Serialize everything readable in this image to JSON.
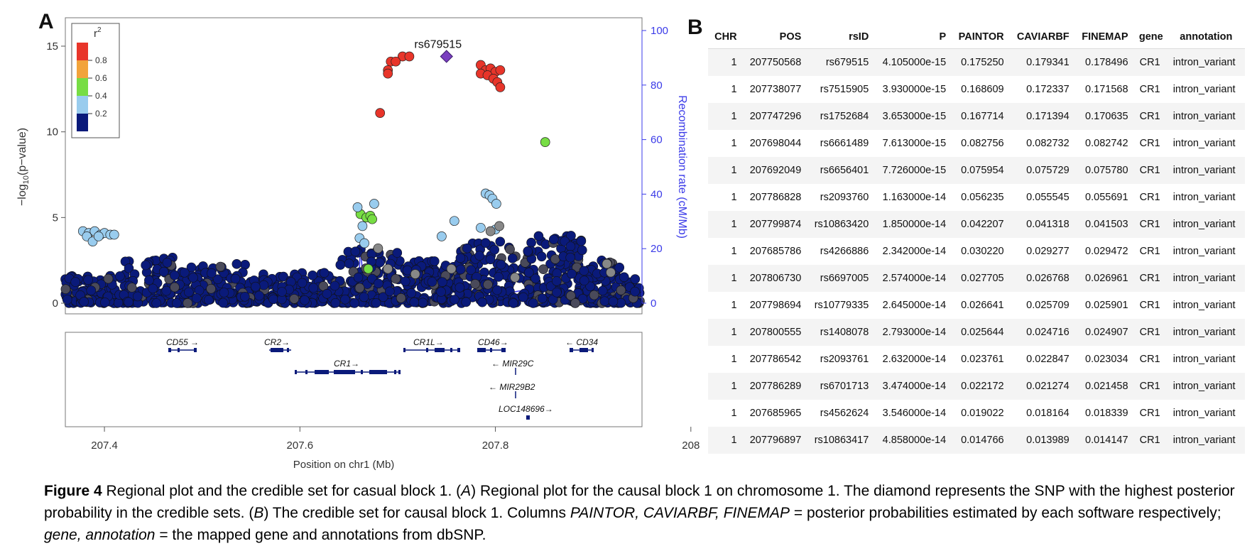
{
  "panel_a": {
    "letter": "A",
    "y_ticks": [
      "0",
      "5",
      "10",
      "15"
    ],
    "y_label_main": "−log",
    "y_label_sub": "10",
    "y_label_rest": "(p−value)",
    "y2_ticks": [
      "0",
      "20",
      "40",
      "60",
      "80",
      "100"
    ],
    "y2_label": "Recombination rate (cM/Mb)",
    "x_ticks": [
      "207.4",
      "207.6",
      "207.8",
      "208"
    ],
    "x_label": "Position on chr1 (Mb)",
    "lead_snp_label": "rs679515",
    "legend": {
      "title_base": "r",
      "title_sup": "2",
      "ticks": [
        "0.8",
        "0.6",
        "0.4",
        "0.2"
      ]
    },
    "colors": {
      "red": "#e8352a",
      "orange": "#f2a33a",
      "green": "#77dd44",
      "lightblue": "#99ccee",
      "navy": "#0a1a7a",
      "gray": "#888888",
      "diamond": "#7a3fbf",
      "recomb": "#3a3ae8"
    },
    "genes": [
      "CD55",
      "CR2",
      "CR1",
      "CR1L",
      "CD46",
      "CD34",
      "MIR29C",
      "MIR29B2",
      "LOC148696"
    ],
    "chart_data": {
      "type": "scatter",
      "xlabel": "Position on chr1 (Mb)",
      "ylabel": "−log10(p−value)",
      "y2label": "Recombination rate (cM/Mb)",
      "xlim": [
        207.36,
        207.95
      ],
      "ylim": [
        0,
        15.5
      ],
      "y2lim": [
        0,
        100
      ],
      "series": [
        {
          "color": "red",
          "points": [
            [
              207.705,
              14.4
            ],
            [
              207.712,
              14.4
            ],
            [
              207.693,
              14.1
            ],
            [
              207.698,
              14.1
            ],
            [
              207.69,
              13.6
            ],
            [
              207.69,
              13.4
            ],
            [
              207.785,
              13.9
            ],
            [
              207.79,
              13.6
            ],
            [
              207.795,
              13.7
            ],
            [
              207.8,
              13.5
            ],
            [
              207.805,
              13.6
            ],
            [
              207.785,
              13.4
            ],
            [
              207.792,
              13.3
            ],
            [
              207.798,
              13.1
            ],
            [
              207.802,
              12.9
            ],
            [
              207.805,
              12.6
            ],
            [
              207.682,
              11.1
            ]
          ]
        },
        {
          "color": "green",
          "points": [
            [
              207.851,
              9.4
            ],
            [
              207.662,
              5.2
            ],
            [
              207.668,
              5.0
            ],
            [
              207.672,
              5.1
            ],
            [
              207.674,
              4.9
            ],
            [
              207.67,
              2.0
            ]
          ]
        },
        {
          "color": "lightblue",
          "points": [
            [
              207.378,
              4.2
            ],
            [
              207.384,
              4.1
            ],
            [
              207.39,
              4.2
            ],
            [
              207.396,
              4.0
            ],
            [
              207.4,
              4.1
            ],
            [
              207.406,
              4.0
            ],
            [
              207.41,
              4.0
            ],
            [
              207.382,
              3.9
            ],
            [
              207.388,
              3.6
            ],
            [
              207.394,
              3.9
            ],
            [
              207.659,
              5.6
            ],
            [
              207.676,
              5.8
            ],
            [
              207.664,
              4.5
            ],
            [
              207.79,
              6.4
            ],
            [
              207.794,
              6.3
            ],
            [
              207.797,
              6.1
            ],
            [
              207.801,
              5.8
            ],
            [
              207.758,
              4.8
            ],
            [
              207.785,
              4.4
            ],
            [
              207.8,
              4.3
            ],
            [
              207.745,
              3.9
            ],
            [
              207.661,
              3.8
            ],
            [
              207.666,
              3.5
            ]
          ]
        },
        {
          "color": "gray",
          "points": [
            [
              207.804,
              4.5
            ],
            [
              207.795,
              4.2
            ],
            [
              207.68,
              3.2
            ],
            [
              207.69,
              2.0
            ],
            [
              207.718,
              1.7
            ],
            [
              207.755,
              2.0
            ],
            [
              207.914,
              2.3
            ],
            [
              207.918,
              1.8
            ],
            [
              207.82,
              1.5
            ]
          ]
        }
      ],
      "lead_snp": {
        "label": "rs679515",
        "x": 207.75,
        "y": 14.4
      }
    }
  },
  "panel_b": {
    "letter": "B",
    "columns": [
      "CHR",
      "POS",
      "rsID",
      "P",
      "PAINTOR",
      "CAVIARBF",
      "FINEMAP",
      "gene",
      "annotation"
    ],
    "rows": [
      [
        "1",
        "207750568",
        "rs679515",
        "4.105000e-15",
        "0.175250",
        "0.179341",
        "0.178496",
        "CR1",
        "intron_variant"
      ],
      [
        "1",
        "207738077",
        "rs7515905",
        "3.930000e-15",
        "0.168609",
        "0.172337",
        "0.171568",
        "CR1",
        "intron_variant"
      ],
      [
        "1",
        "207747296",
        "rs1752684",
        "3.653000e-15",
        "0.167714",
        "0.171394",
        "0.170635",
        "CR1",
        "intron_variant"
      ],
      [
        "1",
        "207698044",
        "rs6661489",
        "7.613000e-15",
        "0.082756",
        "0.082732",
        "0.082742",
        "CR1",
        "intron_variant"
      ],
      [
        "1",
        "207692049",
        "rs6656401",
        "7.726000e-15",
        "0.075954",
        "0.075729",
        "0.075780",
        "CR1",
        "intron_variant"
      ],
      [
        "1",
        "207786828",
        "rs2093760",
        "1.163000e-14",
        "0.056235",
        "0.055545",
        "0.055691",
        "CR1",
        "intron_variant"
      ],
      [
        "1",
        "207799874",
        "rs10863420",
        "1.850000e-14",
        "0.042207",
        "0.041318",
        "0.041503",
        "CR1",
        "intron_variant"
      ],
      [
        "1",
        "207685786",
        "rs4266886",
        "2.342000e-14",
        "0.030220",
        "0.029277",
        "0.029472",
        "CR1",
        "intron_variant"
      ],
      [
        "1",
        "207806730",
        "rs6697005",
        "2.574000e-14",
        "0.027705",
        "0.026768",
        "0.026961",
        "CR1",
        "intron_variant"
      ],
      [
        "1",
        "207798694",
        "rs10779335",
        "2.645000e-14",
        "0.026641",
        "0.025709",
        "0.025901",
        "CR1",
        "intron_variant"
      ],
      [
        "1",
        "207800555",
        "rs1408078",
        "2.793000e-14",
        "0.025644",
        "0.024716",
        "0.024907",
        "CR1",
        "intron_variant"
      ],
      [
        "1",
        "207786542",
        "rs2093761",
        "2.632000e-14",
        "0.023761",
        "0.022847",
        "0.023034",
        "CR1",
        "intron_variant"
      ],
      [
        "1",
        "207786289",
        "rs6701713",
        "3.474000e-14",
        "0.022172",
        "0.021274",
        "0.021458",
        "CR1",
        "intron_variant"
      ],
      [
        "1",
        "207685965",
        "rs4562624",
        "3.546000e-14",
        "0.019022",
        "0.018164",
        "0.018339",
        "CR1",
        "intron_variant"
      ],
      [
        "1",
        "207796897",
        "rs10863417",
        "4.858000e-14",
        "0.014766",
        "0.013989",
        "0.014147",
        "CR1",
        "intron_variant"
      ]
    ]
  },
  "caption": {
    "label": "Figure 4",
    "t1": " Regional plot and the credible set for casual block 1. (",
    "i1": "A",
    "t2": ") Regional plot for the causal block 1 on chromosome 1. The diamond represents the SNP with the highest posterior probability in the credible sets. (",
    "i2": "B",
    "t3": ") The credible set for causal block 1. Columns ",
    "i3": "PAINTOR, CAVIARBF, FINEMAP",
    "t4": " = posterior probabilities estimated by each software respectively; ",
    "i4": "gene, annotation",
    "t5": " = the mapped gene and annotations from dbSNP."
  }
}
